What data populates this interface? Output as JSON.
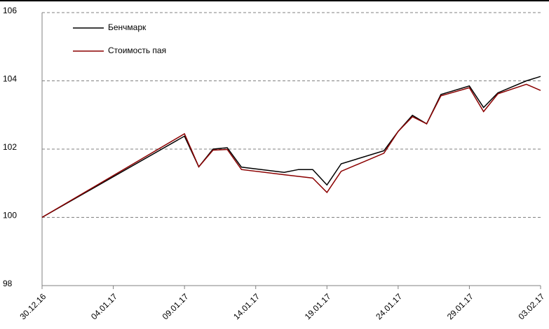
{
  "chart_data": {
    "type": "line",
    "x": [
      "2016-12-30",
      "2017-01-09",
      "2017-01-10",
      "2017-01-11",
      "2017-01-12",
      "2017-01-13",
      "2017-01-16",
      "2017-01-17",
      "2017-01-18",
      "2017-01-19",
      "2017-01-20",
      "2017-01-23",
      "2017-01-24",
      "2017-01-25",
      "2017-01-26",
      "2017-01-27",
      "2017-01-29",
      "2017-01-30",
      "2017-01-31",
      "2017-02-02",
      "2017-02-03"
    ],
    "series": [
      {
        "name": "Бенчмарк",
        "color": "#000000",
        "values": [
          100,
          102.38,
          101.48,
          102.0,
          102.04,
          101.47,
          101.32,
          101.4,
          101.4,
          100.95,
          101.57,
          101.95,
          102.52,
          102.99,
          102.74,
          103.6,
          103.85,
          103.22,
          103.65,
          104.0,
          104.13
        ]
      },
      {
        "name": "Стоимость пая",
        "color": "#8b0000",
        "values": [
          100,
          102.45,
          101.48,
          101.97,
          101.99,
          101.4,
          101.25,
          101.2,
          101.15,
          100.73,
          101.35,
          101.88,
          102.52,
          102.95,
          102.74,
          103.56,
          103.8,
          103.1,
          103.62,
          103.9,
          103.72
        ]
      }
    ],
    "xlim": [
      "2016-12-30",
      "2017-02-03"
    ],
    "xticks": [
      {
        "value": "2016-12-30",
        "label": "30.12.16"
      },
      {
        "value": "2017-01-04",
        "label": "04.01.17"
      },
      {
        "value": "2017-01-09",
        "label": "09.01.17"
      },
      {
        "value": "2017-01-14",
        "label": "14.01.17"
      },
      {
        "value": "2017-01-19",
        "label": "19.01.17"
      },
      {
        "value": "2017-01-24",
        "label": "24.01.17"
      },
      {
        "value": "2017-01-29",
        "label": "29.01.17"
      },
      {
        "value": "2017-02-03",
        "label": "03.02.17"
      }
    ],
    "ylim": [
      98,
      106
    ],
    "yticks": [
      98,
      100,
      102,
      104,
      106
    ],
    "grid": true
  }
}
